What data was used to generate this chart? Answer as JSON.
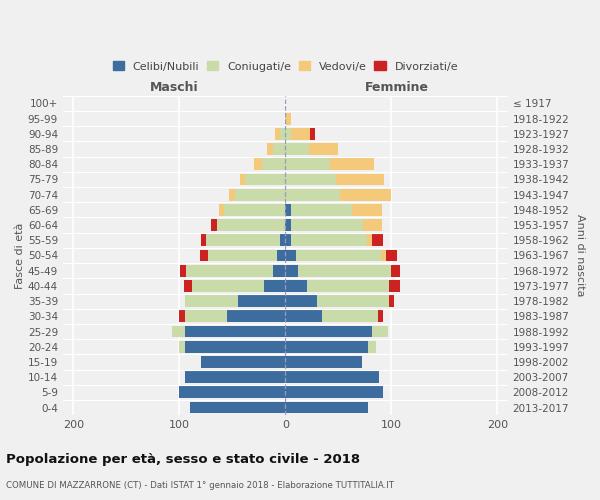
{
  "age_groups": [
    "0-4",
    "5-9",
    "10-14",
    "15-19",
    "20-24",
    "25-29",
    "30-34",
    "35-39",
    "40-44",
    "45-49",
    "50-54",
    "55-59",
    "60-64",
    "65-69",
    "70-74",
    "75-79",
    "80-84",
    "85-89",
    "90-94",
    "95-99",
    "100+"
  ],
  "birth_years": [
    "2013-2017",
    "2008-2012",
    "2003-2007",
    "1998-2002",
    "1993-1997",
    "1988-1992",
    "1983-1987",
    "1978-1982",
    "1973-1977",
    "1968-1972",
    "1963-1967",
    "1958-1962",
    "1953-1957",
    "1948-1952",
    "1943-1947",
    "1938-1942",
    "1933-1937",
    "1928-1932",
    "1923-1927",
    "1918-1922",
    "≤ 1917"
  ],
  "males_celibe": [
    90,
    100,
    95,
    80,
    95,
    95,
    55,
    45,
    20,
    12,
    8,
    5,
    0,
    0,
    0,
    0,
    0,
    0,
    0,
    0,
    0
  ],
  "males_coniugato": [
    0,
    0,
    0,
    0,
    5,
    12,
    40,
    50,
    68,
    82,
    65,
    70,
    65,
    58,
    48,
    38,
    22,
    12,
    5,
    0,
    0
  ],
  "males_vedovo": [
    0,
    0,
    0,
    0,
    0,
    0,
    0,
    0,
    0,
    0,
    0,
    0,
    0,
    5,
    5,
    5,
    8,
    5,
    5,
    0,
    0
  ],
  "males_divorziato": [
    0,
    0,
    0,
    0,
    0,
    0,
    5,
    0,
    8,
    5,
    8,
    5,
    5,
    0,
    0,
    0,
    0,
    0,
    0,
    0,
    0
  ],
  "females_celibe": [
    78,
    92,
    88,
    72,
    78,
    82,
    35,
    30,
    20,
    12,
    10,
    5,
    5,
    5,
    0,
    0,
    0,
    0,
    0,
    0,
    0
  ],
  "females_coniugato": [
    0,
    0,
    0,
    0,
    8,
    15,
    52,
    68,
    78,
    88,
    80,
    72,
    68,
    58,
    52,
    48,
    42,
    22,
    5,
    0,
    0
  ],
  "females_vedovo": [
    0,
    0,
    0,
    0,
    0,
    0,
    0,
    0,
    0,
    0,
    5,
    5,
    18,
    28,
    48,
    45,
    42,
    28,
    18,
    5,
    0
  ],
  "females_divorziato": [
    0,
    0,
    0,
    0,
    0,
    0,
    5,
    5,
    10,
    8,
    10,
    10,
    0,
    0,
    0,
    0,
    0,
    0,
    5,
    0,
    0
  ],
  "colors": {
    "celibe": "#3d6d9e",
    "coniugato": "#c8dba8",
    "vedovo": "#f5c97a",
    "divorziato": "#cc2222"
  },
  "xlim": [
    -210,
    210
  ],
  "xticks": [
    -200,
    -100,
    0,
    100,
    200
  ],
  "xticklabels": [
    "200",
    "100",
    "0",
    "100",
    "200"
  ],
  "title": "Popolazione per età, sesso e stato civile - 2018",
  "subtitle": "COMUNE DI MAZZARRONE (CT) - Dati ISTAT 1° gennaio 2018 - Elaborazione TUTTITALIA.IT",
  "ylabel_left": "Fasce di età",
  "ylabel_right": "Anni di nascita",
  "label_maschi": "Maschi",
  "label_femmine": "Femmine",
  "legend_labels": [
    "Celibi/Nubili",
    "Coniugati/e",
    "Vedovi/e",
    "Divorziati/e"
  ],
  "background_color": "#f0f0f0",
  "bar_height": 0.78
}
